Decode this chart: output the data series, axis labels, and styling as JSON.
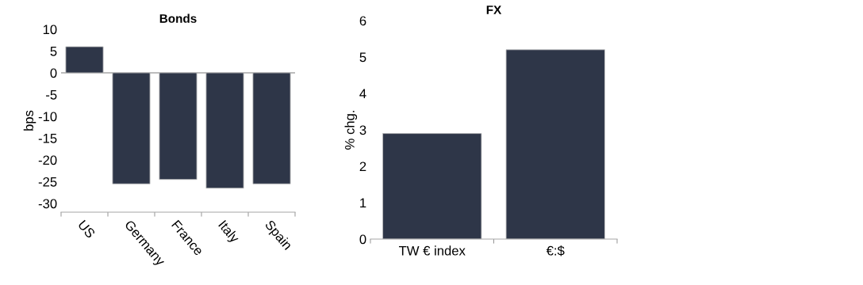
{
  "chart_data": [
    {
      "type": "bar",
      "title": "Bonds",
      "ylabel": "bps",
      "categories": [
        "US",
        "Germany",
        "France",
        "Italy",
        "Spain"
      ],
      "values": [
        6,
        -25.5,
        -24.5,
        -26.5,
        -25.5
      ],
      "color": "#2e3648",
      "ylim": [
        -32,
        10
      ],
      "yticks": [
        -30,
        -25,
        -20,
        -15,
        -10,
        -5,
        0,
        5,
        10
      ],
      "ref_lines": [
        {
          "axis": "y",
          "value": 0,
          "color": "#a6a6a6"
        }
      ],
      "grid": false,
      "legend": false
    },
    {
      "type": "bar",
      "title": "FX",
      "ylabel": "% chg.",
      "categories": [
        "TW € index",
        "€:$"
      ],
      "values": [
        2.9,
        5.2
      ],
      "color": "#2e3648",
      "ylim": [
        0,
        6
      ],
      "yticks": [
        0,
        1,
        2,
        3,
        4,
        5,
        6
      ],
      "grid": false,
      "legend": false
    }
  ]
}
